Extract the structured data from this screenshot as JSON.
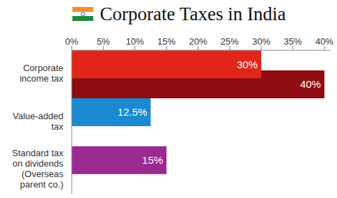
{
  "chart_data": {
    "type": "bar",
    "title": "Corporate Taxes in India",
    "orientation": "horizontal",
    "stacked": false,
    "grid": false,
    "data_labels": true,
    "categories": [
      "Corporate income tax",
      "Value-added tax",
      "Standard tax on dividends (Overseas parent co.)"
    ],
    "series": [
      {
        "color": "#8e0c10",
        "values": [
          40,
          null,
          null
        ],
        "value_labels": [
          "40%",
          null,
          null
        ]
      },
      {
        "colors": [
          "#e1251b",
          "#1b8ad3",
          "#9a2a92"
        ],
        "values": [
          30,
          12.5,
          15
        ],
        "value_labels": [
          "30%",
          "12.5%",
          "15%"
        ]
      }
    ],
    "xlim": [
      0,
      41
    ],
    "xticks": [
      {
        "value": 0,
        "label": "0%"
      },
      {
        "value": 5,
        "label": "5%"
      },
      {
        "value": 10,
        "label": "10%"
      },
      {
        "value": 15,
        "label": "15%"
      },
      {
        "value": 20,
        "label": "20%"
      },
      {
        "value": 25,
        "label": "25%"
      },
      {
        "value": 30,
        "label": "30%"
      },
      {
        "value": 35,
        "label": "35%"
      },
      {
        "value": 40,
        "label": "40%"
      }
    ]
  }
}
